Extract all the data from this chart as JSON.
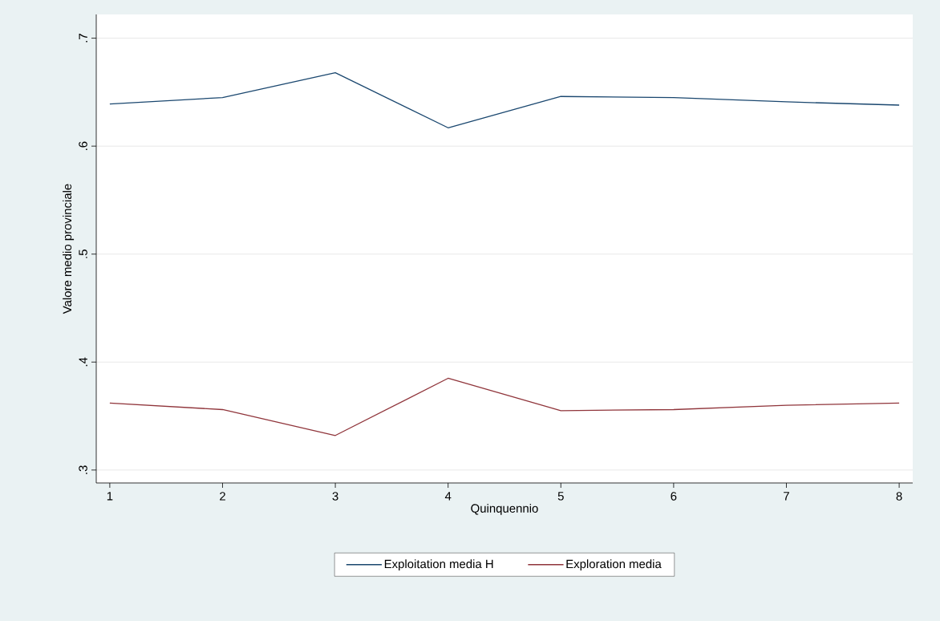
{
  "chart_data": {
    "type": "line",
    "xlabel": "Quinquennio",
    "ylabel": "Valore medio provinciale",
    "x": [
      1,
      2,
      3,
      4,
      5,
      6,
      7,
      8
    ],
    "series": [
      {
        "name": "Exploitation media H",
        "color": "#1a476f",
        "values": [
          0.639,
          0.645,
          0.668,
          0.617,
          0.646,
          0.645,
          0.641,
          0.638
        ]
      },
      {
        "name": "Exploration media",
        "color": "#90353b",
        "values": [
          0.362,
          0.356,
          0.332,
          0.385,
          0.355,
          0.356,
          0.36,
          0.362
        ]
      }
    ],
    "xlim": [
      0.88,
      8.12
    ],
    "ylim": [
      0.288,
      0.722
    ],
    "xticks": [
      1,
      2,
      3,
      4,
      5,
      6,
      7,
      8
    ],
    "yticks": [
      {
        "value": 0.3,
        "label": ".3"
      },
      {
        "value": 0.4,
        "label": ".4"
      },
      {
        "value": 0.5,
        "label": ".5"
      },
      {
        "value": 0.6,
        "label": ".6"
      },
      {
        "value": 0.7,
        "label": ".7"
      }
    ],
    "grid": "y",
    "legend": "bottom",
    "line_style": "solid"
  }
}
